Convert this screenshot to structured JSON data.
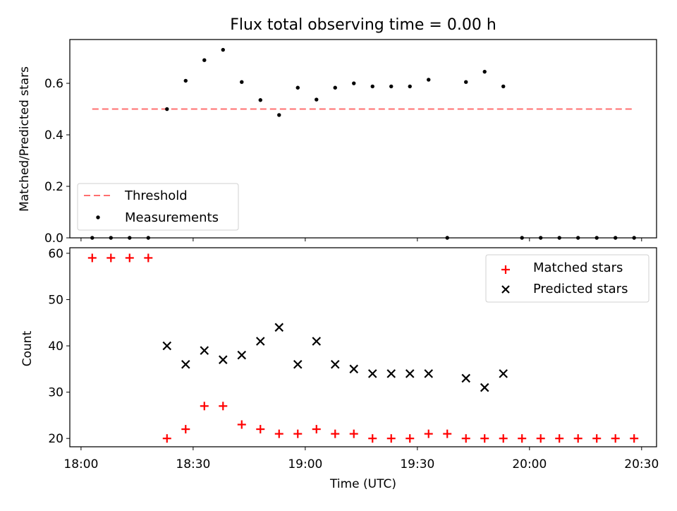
{
  "chart_data": [
    {
      "type": "scatter",
      "title": "Flux total observing time = 0.00 h",
      "ylabel": "Matched/Predicted stars",
      "xlabel": "",
      "ylim": [
        0,
        0.77
      ],
      "yticks": [
        0.0,
        0.2,
        0.4,
        0.6
      ],
      "ytick_labels": [
        "0.0",
        "0.2",
        "0.4",
        "0.6"
      ],
      "grid": false,
      "legend_position": "lower-left",
      "series": [
        {
          "name": "Threshold",
          "kind": "dashed-line",
          "color": "#ff6f6f",
          "x": [
            "18:03",
            "20:28"
          ],
          "y": [
            0.5,
            0.5
          ]
        },
        {
          "name": "Measurements",
          "kind": "point",
          "color": "#000000",
          "x": [
            "18:03",
            "18:08",
            "18:13",
            "18:18",
            "18:23",
            "18:28",
            "18:33",
            "18:38",
            "18:43",
            "18:48",
            "18:53",
            "18:58",
            "19:03",
            "19:08",
            "19:13",
            "19:18",
            "19:23",
            "19:28",
            "19:33",
            "19:38",
            "19:43",
            "19:48",
            "19:53",
            "19:58",
            "20:03",
            "20:08",
            "20:13",
            "20:18",
            "20:23",
            "20:28"
          ],
          "y": [
            0,
            0,
            0,
            0,
            0.5,
            0.61,
            0.69,
            0.73,
            0.605,
            0.535,
            0.477,
            0.583,
            0.537,
            0.583,
            0.6,
            0.588,
            0.588,
            0.588,
            0.614,
            0,
            0.605,
            0.645,
            0.588,
            0,
            0,
            0,
            0,
            0,
            0,
            0
          ]
        }
      ]
    },
    {
      "type": "scatter",
      "title": "",
      "ylabel": "Count",
      "xlabel": "Time (UTC)",
      "ylim": [
        18.2,
        61.2
      ],
      "yticks": [
        20,
        30,
        40,
        50,
        60
      ],
      "ytick_labels": [
        "20",
        "30",
        "40",
        "50",
        "60"
      ],
      "xticks": [
        "18:00",
        "18:30",
        "19:00",
        "19:30",
        "20:00",
        "20:30"
      ],
      "grid": false,
      "legend_position": "top-right",
      "series": [
        {
          "name": "Matched stars",
          "marker": "+",
          "color": "#ff0000",
          "x": [
            "18:03",
            "18:08",
            "18:13",
            "18:18",
            "18:23",
            "18:28",
            "18:33",
            "18:38",
            "18:43",
            "18:48",
            "18:53",
            "18:58",
            "19:03",
            "19:08",
            "19:13",
            "19:18",
            "19:23",
            "19:28",
            "19:33",
            "19:38",
            "19:43",
            "19:48",
            "19:53",
            "19:58",
            "20:03",
            "20:08",
            "20:13",
            "20:18",
            "20:23",
            "20:28"
          ],
          "y": [
            59,
            59,
            59,
            59,
            20,
            22,
            27,
            27,
            23,
            22,
            21,
            21,
            22,
            21,
            21,
            20,
            20,
            20,
            21,
            21,
            20,
            20,
            20,
            20,
            20,
            20,
            20,
            20,
            20,
            20
          ]
        },
        {
          "name": "Predicted stars",
          "marker": "x",
          "color": "#000000",
          "x": [
            "18:23",
            "18:28",
            "18:33",
            "18:38",
            "18:43",
            "18:48",
            "18:53",
            "18:58",
            "19:03",
            "19:08",
            "19:13",
            "19:18",
            "19:23",
            "19:28",
            "19:33",
            "19:43",
            "19:48",
            "19:53"
          ],
          "y": [
            40,
            36,
            39,
            37,
            38,
            41,
            44,
            36,
            41,
            36,
            35,
            34,
            34,
            34,
            34,
            33,
            31,
            34
          ]
        }
      ]
    }
  ]
}
